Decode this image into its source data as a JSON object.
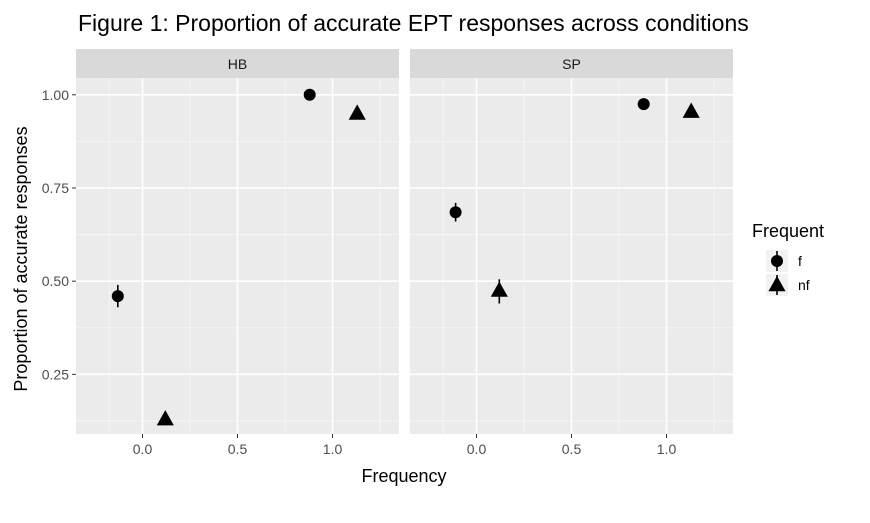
{
  "chart_data": {
    "type": "scatter",
    "title": "Figure 1: Proportion of accurate EPT responses across conditions",
    "xlabel": "Frequency",
    "ylabel": "Proportion of accurate responses",
    "xlim": [
      -0.35,
      1.35
    ],
    "ylim": [
      0.09,
      1.045
    ],
    "x_ticks": [
      0.0,
      0.5,
      1.0
    ],
    "x_tick_labels": [
      "0.0",
      "0.5",
      "1.0"
    ],
    "y_ticks": [
      0.25,
      0.5,
      0.75,
      1.0
    ],
    "y_tick_labels": [
      "0.25",
      "0.50",
      "0.75",
      "1.00"
    ],
    "grid": true,
    "legend_position": "right",
    "legend": {
      "title": "Frequent",
      "entries": [
        {
          "label": "f",
          "shape": "circle"
        },
        {
          "label": "nf",
          "shape": "triangle"
        }
      ]
    },
    "panels": [
      {
        "label": "HB",
        "points": [
          {
            "series": "f",
            "x": -0.13,
            "y": 0.46,
            "ymin": 0.43,
            "ymax": 0.49
          },
          {
            "series": "nf",
            "x": 0.12,
            "y": 0.13,
            "ymin": 0.115,
            "ymax": 0.145
          },
          {
            "series": "f",
            "x": 0.88,
            "y": 1.0,
            "ymin": 0.995,
            "ymax": 1.0
          },
          {
            "series": "nf",
            "x": 1.13,
            "y": 0.95,
            "ymin": 0.94,
            "ymax": 0.96
          }
        ]
      },
      {
        "label": "SP",
        "points": [
          {
            "series": "f",
            "x": -0.11,
            "y": 0.685,
            "ymin": 0.66,
            "ymax": 0.71
          },
          {
            "series": "nf",
            "x": 0.12,
            "y": 0.475,
            "ymin": 0.44,
            "ymax": 0.505
          },
          {
            "series": "f",
            "x": 0.88,
            "y": 0.975,
            "ymin": 0.97,
            "ymax": 0.98
          },
          {
            "series": "nf",
            "x": 1.13,
            "y": 0.955,
            "ymin": 0.945,
            "ymax": 0.965
          }
        ]
      }
    ],
    "colors": {
      "panel_bg": "#EBEBEB",
      "strip_bg": "#D9D9D9",
      "grid_major": "#FFFFFF",
      "point": "#000000"
    }
  }
}
